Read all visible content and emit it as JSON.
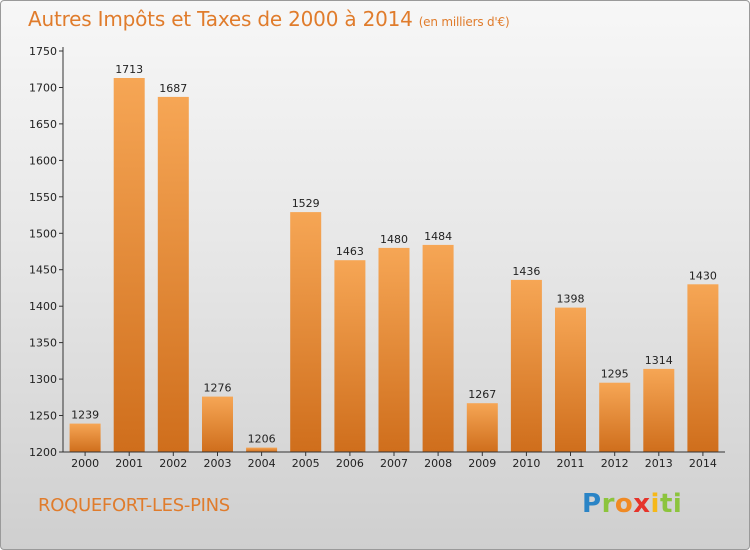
{
  "title": "Autres Impôts et Taxes de 2000 à 2014",
  "unit_note": "(en milliers d'€)",
  "commune": "ROQUEFORT-LES-PINS",
  "brand": {
    "letters": [
      "P",
      "r",
      "o",
      "x",
      "i",
      "t",
      "i"
    ]
  },
  "colors": {
    "bar_light": "#f6a655",
    "bar_dark": "#cf6e1c",
    "accent": "#e07c2c",
    "axis": "#333333"
  },
  "chart_data": {
    "type": "bar",
    "categories": [
      "2000",
      "2001",
      "2002",
      "2003",
      "2004",
      "2005",
      "2006",
      "2007",
      "2008",
      "2009",
      "2010",
      "2011",
      "2012",
      "2013",
      "2014"
    ],
    "values": [
      1239,
      1713,
      1687,
      1276,
      1206,
      1529,
      1463,
      1480,
      1484,
      1267,
      1436,
      1398,
      1295,
      1314,
      1430
    ],
    "ylim": [
      1200,
      1750
    ],
    "yticks": [
      1200,
      1250,
      1300,
      1350,
      1400,
      1450,
      1500,
      1550,
      1600,
      1650,
      1700,
      1750
    ],
    "xlabel": "",
    "ylabel": "",
    "grid": false
  }
}
